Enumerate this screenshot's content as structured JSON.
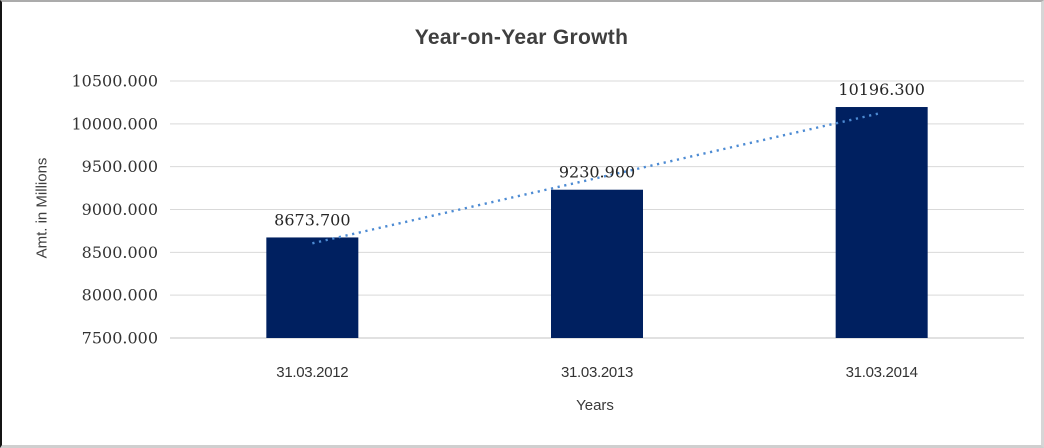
{
  "chart_data": {
    "type": "bar",
    "title": "Year-on-Year Growth",
    "categories": [
      "31.03.2012",
      "31.03.2013",
      "31.03.2014"
    ],
    "values": [
      8673.7,
      9230.9,
      10196.3
    ],
    "data_labels": [
      "8673.700",
      "9230.900",
      "10196.300"
    ],
    "xlabel": "Years",
    "ylabel": "Amt. in Millions",
    "ylim": [
      7500,
      10500
    ],
    "ytick_step": 500,
    "ytick_labels": [
      "7500.000",
      "8000.000",
      "8500.000",
      "9000.000",
      "9500.000",
      "10000.000",
      "10500.000"
    ],
    "grid": true,
    "legend": "none",
    "trendline": {
      "type": "linear",
      "style": "dotted"
    },
    "colors": {
      "bar": "#002060",
      "trendline": "#4d8bd3",
      "gridline": "#d9d9d9",
      "axis_line": "#c3c3c3",
      "title_text": "#3f3f3f",
      "tick_text": "#333333",
      "data_label_text": "#262626",
      "background": "#ffffff"
    }
  }
}
